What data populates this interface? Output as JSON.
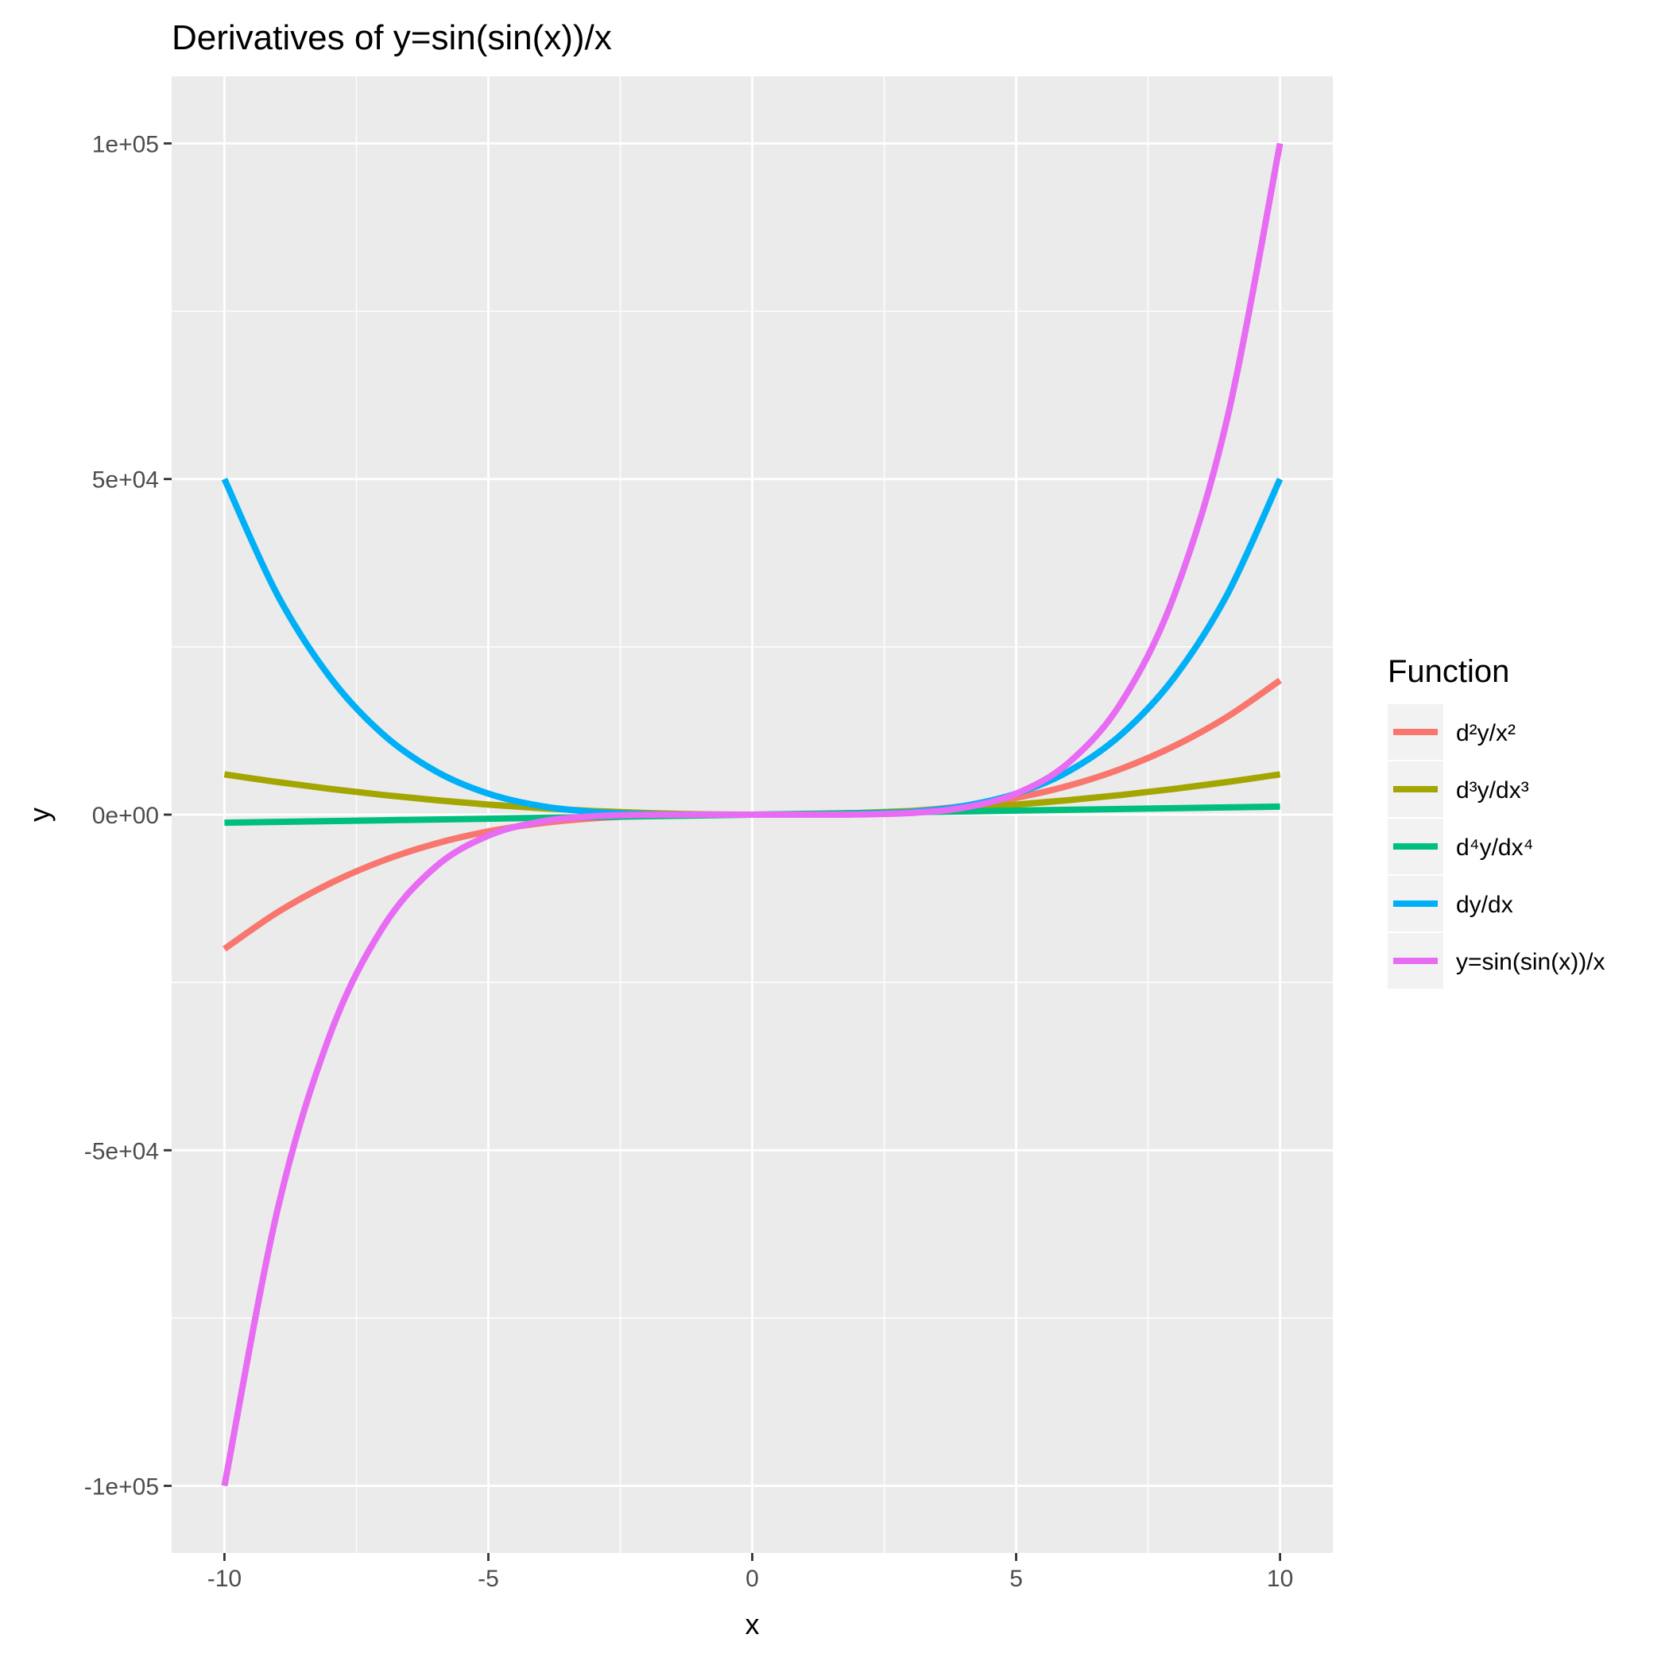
{
  "chart_data": {
    "type": "line",
    "title": "Derivatives of y=sin(sin(x))/x",
    "xlabel": "x",
    "ylabel": "y",
    "xlim": [
      -11,
      11
    ],
    "ylim": [
      -110000,
      110000
    ],
    "x_ticks": [
      -10,
      -5,
      0,
      5,
      10
    ],
    "x_tick_labels": [
      "-10",
      "-5",
      "0",
      "5",
      "10"
    ],
    "y_ticks": [
      -100000,
      -50000,
      0,
      50000,
      100000
    ],
    "y_tick_labels": [
      "-1e+05",
      "-5e+04",
      "0e+00",
      "5e+04",
      "1e+05"
    ],
    "grid": true,
    "legend": {
      "title": "Function",
      "placement": "right"
    },
    "x": [
      -10,
      -9,
      -8,
      -7,
      -6,
      -5,
      -4,
      -3,
      -2,
      -1,
      0,
      1,
      2,
      3,
      4,
      5,
      6,
      7,
      8,
      9,
      10
    ],
    "series": [
      {
        "name": "d²y/x²",
        "color": "#F8766D",
        "values": [
          -20000,
          -14580,
          -10240,
          -6860,
          -4320,
          -2500,
          -1280,
          -540,
          -160,
          -20,
          0,
          20,
          160,
          540,
          1280,
          2500,
          4320,
          6860,
          10240,
          14580,
          20000
        ]
      },
      {
        "name": "d³y/dx³",
        "color": "#A3A500",
        "values": [
          6000,
          4860,
          3840,
          2940,
          2160,
          1500,
          960,
          540,
          240,
          60,
          0,
          60,
          240,
          540,
          960,
          1500,
          2160,
          2940,
          3840,
          4860,
          6000
        ]
      },
      {
        "name": "d⁴y/dx⁴",
        "color": "#00BF7D",
        "values": [
          -1200,
          -1080,
          -960,
          -840,
          -720,
          -600,
          -480,
          -360,
          -240,
          -120,
          0,
          120,
          240,
          360,
          480,
          600,
          720,
          840,
          960,
          1080,
          1200
        ]
      },
      {
        "name": "dy/dx",
        "color": "#00B0F6",
        "values": [
          50000,
          32805,
          20480,
          12005,
          6480,
          3125,
          1280,
          405,
          80,
          5,
          0,
          5,
          80,
          405,
          1280,
          3125,
          6480,
          12005,
          20480,
          32805,
          50000
        ]
      },
      {
        "name": "y=sin(sin(x))/x",
        "color": "#E76BF3",
        "values": [
          -100000,
          -59049,
          -32768,
          -16807,
          -7776,
          -3125,
          -1024,
          -243,
          -32,
          -1,
          0,
          1,
          32,
          243,
          1024,
          3125,
          7776,
          16807,
          32768,
          59049,
          100000
        ]
      }
    ]
  }
}
